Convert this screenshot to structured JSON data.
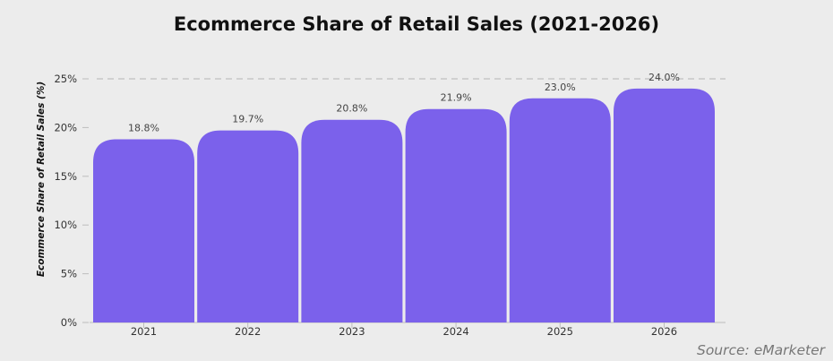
{
  "chart_data": {
    "type": "bar",
    "title": "Ecommerce Share of Retail Sales (2021-2026)",
    "xlabel": "",
    "ylabel": "Ecommerce Share of Retail Sales (%)",
    "categories": [
      "2021",
      "2022",
      "2023",
      "2024",
      "2025",
      "2026"
    ],
    "values": [
      18.8,
      19.7,
      20.8,
      21.9,
      23.0,
      24.0
    ],
    "data_labels": [
      "18.8%",
      "19.7%",
      "20.8%",
      "21.9%",
      "23.0%",
      "24.0%"
    ],
    "ylim": [
      0,
      25
    ],
    "yticks": [
      0,
      5,
      10,
      15,
      20,
      25
    ],
    "ytick_labels": [
      "0%",
      "5%",
      "10%",
      "15%",
      "20%",
      "25%"
    ],
    "grid": false,
    "reference_line": 25,
    "bar_color": "#7b61eb",
    "background_color": "#ececec",
    "source": "Source: eMarketer"
  }
}
